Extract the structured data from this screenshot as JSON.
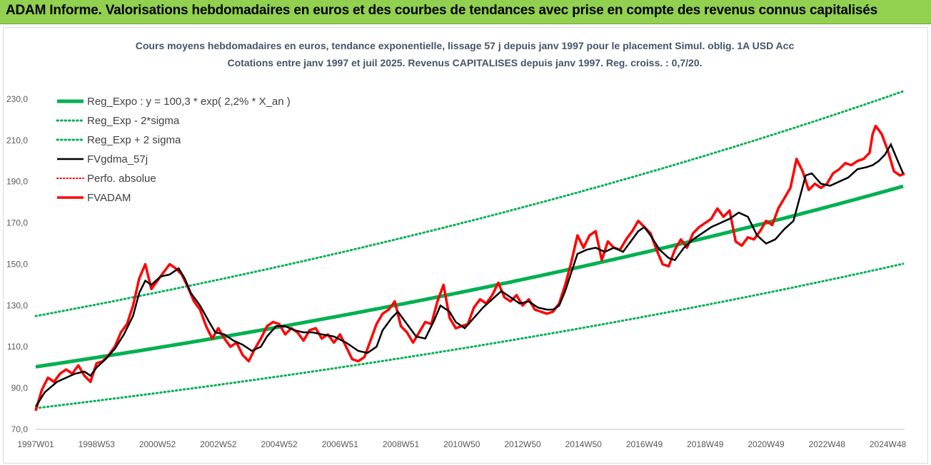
{
  "header": {
    "title": "ADAM Informe. Valorisations hebdomadaires en euros et des courbes de tendances avec prise en compte des revenus connus capitalisés"
  },
  "chart_data": {
    "type": "line",
    "title": "Cours moyens hebdomadaires en euros, tendance exponentielle, lissage 57 j depuis janv 1997 pour le placement Simul. oblig. 1A USD Acc",
    "subtitle": "Cotations entre janv 1997 et juil 2025. Revenus CAPITALISES depuis janv 1997.  Reg. croiss. : 0,7/20.",
    "xlabel": "",
    "ylabel": "",
    "xlim": [
      1997.0,
      2025.55
    ],
    "ylim": [
      70,
      240
    ],
    "y_ticks": [
      70,
      90,
      110,
      130,
      150,
      170,
      190,
      210,
      230
    ],
    "y_tick_labels": [
      "70,0",
      "90,0",
      "110,0",
      "130,0",
      "150,0",
      "170,0",
      "190,0",
      "210,0",
      "230,0"
    ],
    "x_ticks": [
      1997.0,
      1999.0,
      2001.0,
      2003.0,
      2005.0,
      2007.0,
      2009.0,
      2011.0,
      2013.0,
      2015.0,
      2017.0,
      2019.0,
      2021.0,
      2023.0,
      2025.0
    ],
    "x_tick_labels": [
      "1997W01",
      "1998W53",
      "2000W52",
      "2002W52",
      "2004W52",
      "2006W51",
      "2008W51",
      "2010W50",
      "2012W50",
      "2014W50",
      "2016W49",
      "2018W49",
      "2020W49",
      "2022W48",
      "2024W48"
    ],
    "grid": false,
    "legend_position": "top-left",
    "colors": {
      "reg_expo": "#00b050",
      "band": "#00b050",
      "fvgdma": "#000000",
      "perfo": "#ff0000",
      "fvadam": "#ff0000",
      "banner": "#92d050",
      "subtitle": "#44546a"
    },
    "series": [
      {
        "name": "Reg_Expo : y = 100,3 * exp( 2,2% *  X_an )",
        "style": "solid-thick",
        "formula": {
          "a": 100.3,
          "rate": 0.022,
          "factor": 1.0
        }
      },
      {
        "name": "Reg_Exp - 2*sigma",
        "style": "dotted",
        "formula": {
          "a": 100.3,
          "rate": 0.022,
          "factor": 0.8
        }
      },
      {
        "name": "Reg_Exp + 2 sigma",
        "style": "dotted",
        "formula": {
          "a": 100.3,
          "rate": 0.022,
          "factor": 1.245
        }
      },
      {
        "name": "FVgdma_57j",
        "style": "solid-thin",
        "x": [
          1997.0,
          1997.3,
          1997.7,
          1998.0,
          1998.3,
          1998.6,
          1998.8,
          1999.0,
          1999.3,
          1999.6,
          1999.9,
          2000.2,
          2000.4,
          2000.6,
          2000.8,
          2001.1,
          2001.4,
          2001.7,
          2001.9,
          2002.1,
          2002.4,
          2002.7,
          2002.9,
          2003.2,
          2003.5,
          2003.8,
          2004.1,
          2004.4,
          2004.6,
          2004.9,
          2005.2,
          2005.5,
          2005.8,
          2006.1,
          2006.4,
          2006.8,
          2007.2,
          2007.6,
          2007.9,
          2008.2,
          2008.4,
          2008.7,
          2008.9,
          2009.2,
          2009.5,
          2009.8,
          2010.1,
          2010.3,
          2010.6,
          2010.8,
          2011.1,
          2011.4,
          2011.7,
          2012.0,
          2012.3,
          2012.6,
          2012.9,
          2013.2,
          2013.5,
          2013.8,
          2014.0,
          2014.2,
          2014.4,
          2014.6,
          2014.8,
          2015.1,
          2015.4,
          2015.7,
          2016.0,
          2016.3,
          2016.6,
          2016.8,
          2017.0,
          2017.2,
          2017.5,
          2017.8,
          2018.0,
          2018.3,
          2018.6,
          2018.9,
          2019.2,
          2019.5,
          2019.8,
          2020.1,
          2020.4,
          2020.7,
          2021.0,
          2021.3,
          2021.6,
          2021.9,
          2022.1,
          2022.3,
          2022.5,
          2022.8,
          2023.1,
          2023.4,
          2023.7,
          2024.0,
          2024.3,
          2024.5,
          2024.7,
          2024.9,
          2025.1,
          2025.3,
          2025.5
        ],
        "y": [
          81,
          88,
          93,
          95,
          97,
          98,
          96,
          100,
          104,
          109,
          116,
          125,
          136,
          142,
          140,
          144,
          145,
          148,
          143,
          136,
          130,
          122,
          117,
          116,
          113,
          111,
          108,
          110,
          115,
          120,
          120,
          118,
          117,
          117,
          116,
          115,
          112,
          108,
          107,
          110,
          118,
          124,
          127,
          121,
          115,
          114,
          123,
          130,
          127,
          122,
          119,
          124,
          129,
          133,
          137,
          134,
          131,
          132,
          129,
          128,
          128,
          130,
          137,
          146,
          155,
          157,
          158,
          156,
          158,
          156,
          162,
          166,
          168,
          164,
          157,
          153,
          152,
          158,
          162,
          165,
          168,
          170,
          172,
          175,
          173,
          164,
          160,
          162,
          167,
          171,
          182,
          193,
          194,
          189,
          188,
          190,
          192,
          196,
          197,
          198,
          200,
          203,
          208,
          201,
          194
        ]
      },
      {
        "name": "Perfo. absolue",
        "style": "dotted-red"
      },
      {
        "name": "FVADAM",
        "style": "solid-red",
        "x": [
          1997.0,
          1997.2,
          1997.4,
          1997.6,
          1997.8,
          1998.0,
          1998.2,
          1998.4,
          1998.6,
          1998.8,
          1999.0,
          1999.2,
          1999.4,
          1999.6,
          1999.8,
          2000.0,
          2000.2,
          2000.4,
          2000.6,
          2000.8,
          2001.0,
          2001.2,
          2001.4,
          2001.6,
          2001.8,
          2002.0,
          2002.2,
          2002.4,
          2002.6,
          2002.8,
          2003.0,
          2003.2,
          2003.4,
          2003.6,
          2003.8,
          2004.0,
          2004.2,
          2004.4,
          2004.6,
          2004.8,
          2005.0,
          2005.2,
          2005.4,
          2005.6,
          2005.8,
          2006.0,
          2006.2,
          2006.4,
          2006.6,
          2006.8,
          2007.0,
          2007.2,
          2007.4,
          2007.6,
          2007.8,
          2008.0,
          2008.2,
          2008.4,
          2008.6,
          2008.8,
          2009.0,
          2009.2,
          2009.4,
          2009.6,
          2009.8,
          2010.0,
          2010.2,
          2010.4,
          2010.6,
          2010.8,
          2011.0,
          2011.2,
          2011.4,
          2011.6,
          2011.8,
          2012.0,
          2012.2,
          2012.4,
          2012.6,
          2012.8,
          2013.0,
          2013.2,
          2013.4,
          2013.6,
          2013.8,
          2014.0,
          2014.2,
          2014.4,
          2014.6,
          2014.8,
          2015.0,
          2015.2,
          2015.4,
          2015.6,
          2015.8,
          2016.0,
          2016.2,
          2016.4,
          2016.6,
          2016.8,
          2017.0,
          2017.2,
          2017.4,
          2017.6,
          2017.8,
          2018.0,
          2018.2,
          2018.4,
          2018.6,
          2018.8,
          2019.0,
          2019.2,
          2019.4,
          2019.6,
          2019.8,
          2020.0,
          2020.2,
          2020.4,
          2020.6,
          2020.8,
          2021.0,
          2021.2,
          2021.4,
          2021.6,
          2021.8,
          2022.0,
          2022.2,
          2022.4,
          2022.6,
          2022.8,
          2023.0,
          2023.2,
          2023.4,
          2023.6,
          2023.8,
          2024.0,
          2024.2,
          2024.4,
          2024.5,
          2024.6,
          2024.8,
          2025.0,
          2025.2,
          2025.4,
          2025.55
        ],
        "y": [
          79,
          89,
          95,
          93,
          97,
          99,
          97,
          101,
          96,
          93,
          102,
          103,
          106,
          110,
          117,
          121,
          130,
          143,
          150,
          138,
          142,
          146,
          150,
          148,
          145,
          139,
          132,
          128,
          120,
          114,
          119,
          114,
          110,
          112,
          106,
          103,
          109,
          114,
          120,
          122,
          121,
          116,
          119,
          117,
          113,
          118,
          119,
          114,
          116,
          112,
          116,
          110,
          104,
          103,
          105,
          113,
          121,
          126,
          128,
          132,
          120,
          117,
          112,
          117,
          122,
          121,
          132,
          140,
          124,
          119,
          120,
          121,
          129,
          133,
          131,
          135,
          141,
          134,
          132,
          135,
          130,
          133,
          128,
          127,
          126,
          127,
          131,
          140,
          151,
          164,
          158,
          164,
          166,
          152,
          161,
          158,
          157,
          162,
          166,
          171,
          168,
          165,
          157,
          150,
          149,
          157,
          162,
          158,
          165,
          168,
          170,
          172,
          177,
          173,
          176,
          161,
          159,
          163,
          162,
          166,
          171,
          169,
          177,
          182,
          187,
          201,
          195,
          186,
          189,
          187,
          189,
          194,
          196,
          199,
          198,
          200,
          201,
          204,
          213,
          217,
          213,
          205,
          195,
          193,
          194
        ]
      }
    ]
  }
}
